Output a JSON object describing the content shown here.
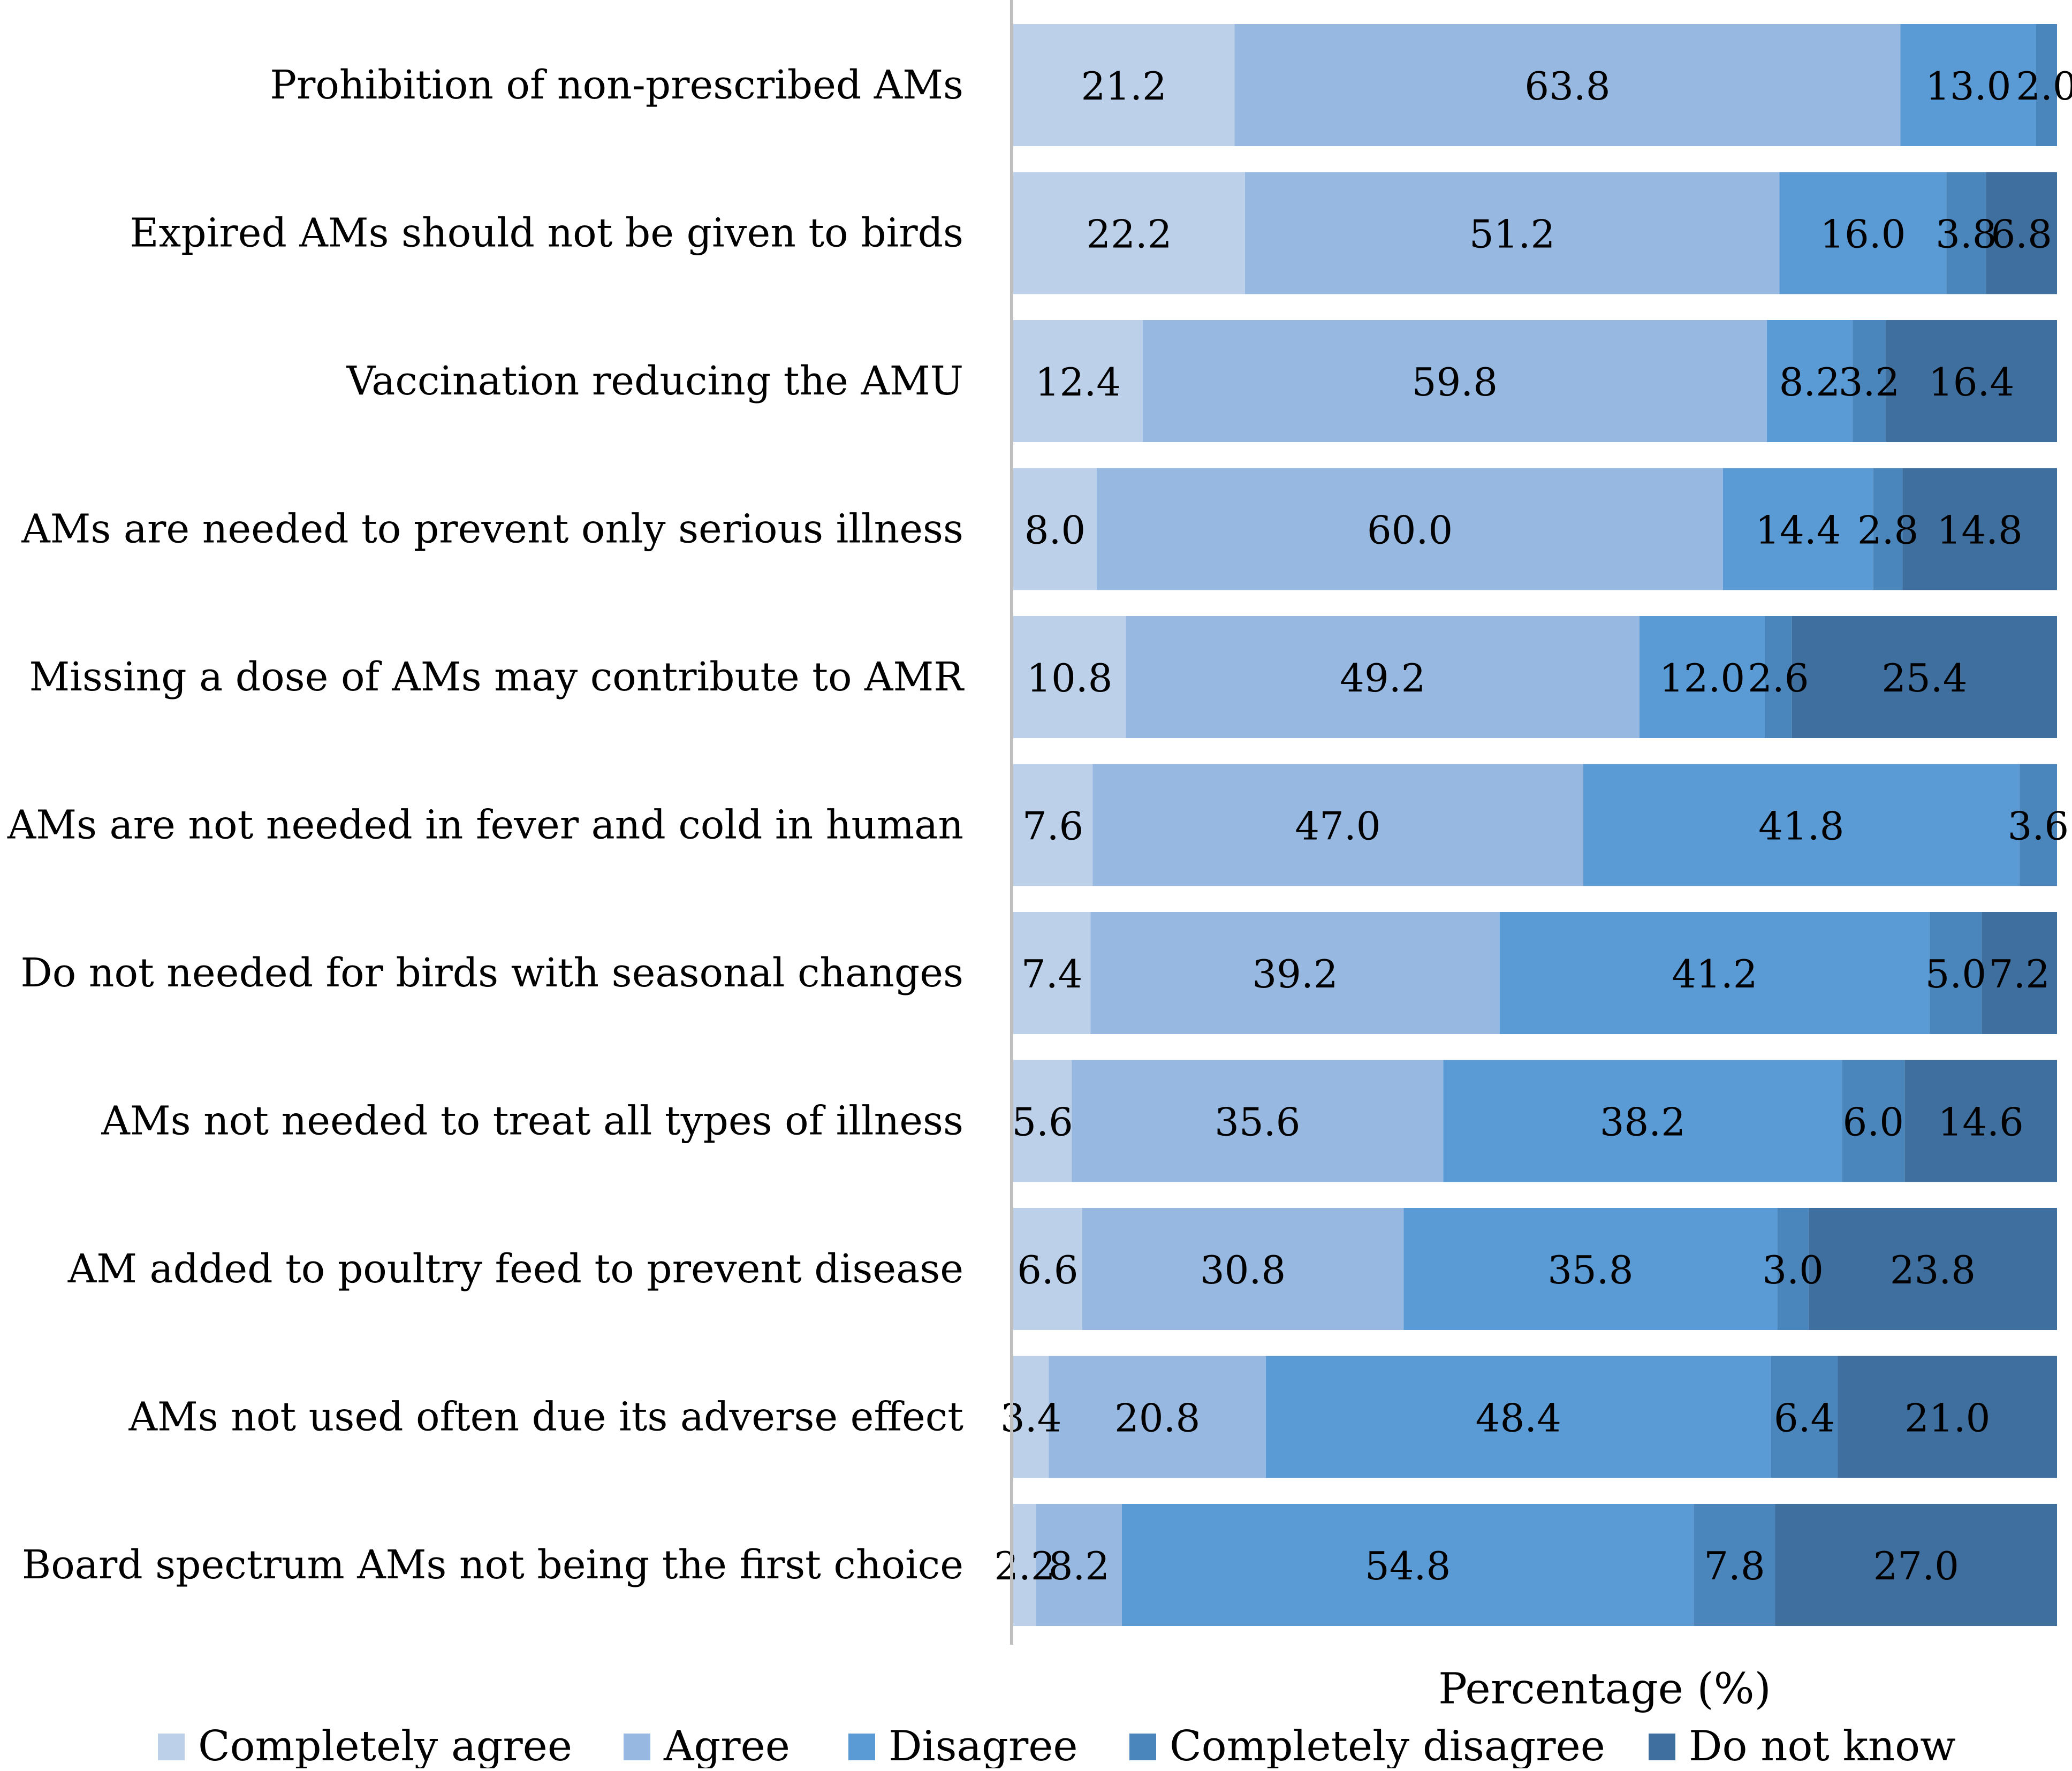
{
  "chart_data": {
    "type": "bar",
    "orientation": "horizontal",
    "stacked": true,
    "title": "",
    "xlabel": "Percentage (%)",
    "ylabel": "",
    "xlim": [
      0,
      100
    ],
    "grid": false,
    "legend_position": "bottom",
    "categories": [
      "Prohibition of non-prescribed AMs",
      "Expired AMs should not be given to birds",
      "Vaccination reducing the AMU",
      "AMs are needed to prevent only serious illness",
      "Missing a dose of AMs may contribute to AMR",
      "AMs are not needed in fever and cold in human",
      "Do not needed for birds with seasonal changes",
      "AMs not needed to treat all types of illness",
      "AM added to poultry feed to prevent disease",
      "AMs not used often due its adverse effect",
      "Board spectrum AMs not being the first choice"
    ],
    "series": [
      {
        "name": "Completely agree",
        "color": "#bdd0ea",
        "values": [
          21.2,
          22.2,
          12.4,
          8.0,
          10.8,
          7.6,
          7.4,
          5.6,
          6.6,
          3.4,
          2.2
        ]
      },
      {
        "name": "Agree",
        "color": "#97b8e0",
        "values": [
          63.8,
          51.2,
          59.8,
          60.0,
          49.2,
          47.0,
          39.2,
          35.6,
          30.8,
          20.8,
          8.2
        ]
      },
      {
        "name": "Disagree",
        "color": "#5b9bd5",
        "values": [
          13.0,
          16.0,
          8.2,
          14.4,
          12.0,
          41.8,
          41.2,
          38.2,
          35.8,
          48.4,
          54.8
        ]
      },
      {
        "name": "Completely disagree",
        "color": "#4a85bc",
        "values": [
          2.0,
          3.8,
          3.2,
          2.8,
          2.6,
          3.6,
          5.0,
          6.0,
          3.0,
          6.4,
          7.8
        ]
      },
      {
        "name": "Do not know",
        "color": "#3f6f9e",
        "values": [
          0.0,
          6.8,
          16.4,
          14.8,
          25.4,
          0.0,
          7.2,
          14.6,
          23.8,
          21.0,
          27.0
        ]
      }
    ]
  }
}
